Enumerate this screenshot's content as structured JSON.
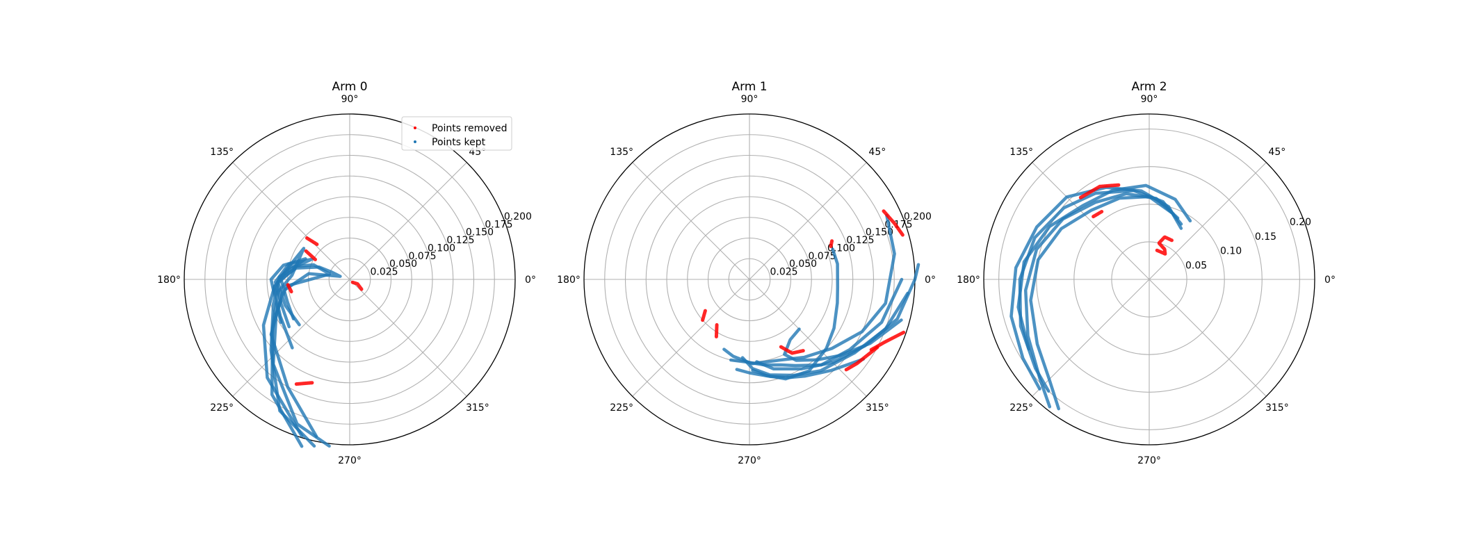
{
  "chart_data": [
    {
      "type": "scatter",
      "polar": true,
      "title": "Arm 0",
      "rlim": [
        0,
        0.2
      ],
      "rticks": [
        "0.025",
        "0.050",
        "0.075",
        "0.100",
        "0.125",
        "0.150",
        "0.175",
        "0.200"
      ],
      "rtick_values": [
        0.025,
        0.05,
        0.075,
        0.1,
        0.125,
        0.15,
        0.175,
        0.2
      ],
      "thetaticks": [
        "0°",
        "45°",
        "90°",
        "135°",
        "180°",
        "225°",
        "270°",
        "315°"
      ],
      "grid": true,
      "legend": {
        "placement": "top-right",
        "entries": [
          "Points removed",
          "Points kept"
        ]
      },
      "series": [
        {
          "name": "Points kept",
          "color": "#1f77b4",
          "traces": [
            [
              [
                215,
                0.083
              ],
              [
                200,
                0.08
              ],
              [
                180,
                0.083
              ],
              [
                168,
                0.066
              ],
              [
                158,
                0.04
              ],
              [
                158,
                0.023
              ],
              [
                162,
                0.012
              ],
              [
                172,
                0.05
              ],
              [
                190,
                0.082
              ],
              [
                215,
                0.116
              ],
              [
                240,
                0.15
              ],
              [
                258,
                0.194
              ]
            ],
            [
              [
                222,
                0.082
              ],
              [
                202,
                0.084
              ],
              [
                182,
                0.087
              ],
              [
                168,
                0.073
              ],
              [
                158,
                0.047
              ],
              [
                165,
                0.025
              ],
              [
                186,
                0.077
              ],
              [
                205,
                0.098
              ],
              [
                228,
                0.138
              ],
              [
                250,
                0.186
              ],
              [
                263,
                0.203
              ]
            ],
            [
              [
                218,
                0.093
              ],
              [
                200,
                0.088
              ],
              [
                182,
                0.09
              ],
              [
                166,
                0.076
              ],
              [
                152,
                0.052
              ],
              [
                166,
                0.066
              ],
              [
                185,
                0.091
              ],
              [
                208,
                0.118
              ],
              [
                230,
                0.155
              ],
              [
                253,
                0.198
              ]
            ],
            [
              [
                212,
                0.098
              ],
              [
                196,
                0.093
              ],
              [
                180,
                0.095
              ],
              [
                168,
                0.082
              ],
              [
                155,
                0.059
              ],
              [
                178,
                0.085
              ],
              [
                198,
                0.097
              ],
              [
                222,
                0.128
              ],
              [
                242,
                0.18
              ],
              [
                258,
                0.206
              ]
            ],
            [
              [
                230,
                0.108
              ],
              [
                208,
                0.095
              ],
              [
                186,
                0.092
              ],
              [
                172,
                0.078
              ],
              [
                146,
                0.067
              ],
              [
                176,
                0.07
              ],
              [
                190,
                0.088
              ],
              [
                212,
                0.11
              ],
              [
                236,
                0.168
              ],
              [
                254,
                0.21
              ]
            ]
          ]
        },
        {
          "name": "Points removed",
          "color": "#ff0000",
          "traces": [
            [
              [
                150,
                0.048
              ],
              [
                147,
                0.063
              ]
            ],
            [
              [
                133,
                0.058
              ],
              [
                136,
                0.072
              ]
            ],
            [
              [
                185,
                0.075
              ],
              [
                192,
                0.072
              ]
            ],
            [
              [
                243,
                0.142
              ],
              [
                250,
                0.133
              ]
            ],
            [
              [
                315,
                0.005
              ],
              [
                330,
                0.011
              ],
              [
                320,
                0.019
              ]
            ]
          ]
        }
      ]
    },
    {
      "type": "scatter",
      "polar": true,
      "title": "Arm 1",
      "rlim": [
        0,
        0.2
      ],
      "rticks": [
        "0.025",
        "0.050",
        "0.075",
        "0.100",
        "0.125",
        "0.150",
        "0.175",
        "0.200"
      ],
      "rtick_values": [
        0.025,
        0.05,
        0.075,
        0.1,
        0.125,
        0.15,
        0.175,
        0.2
      ],
      "thetaticks": [
        "0°",
        "45°",
        "90°",
        "135°",
        "180°",
        "225°",
        "270°",
        "315°"
      ],
      "grid": true,
      "series": [
        {
          "name": "Points kept",
          "color": "#1f77b4",
          "traces": [
            [
              [
                25,
                0.183
              ],
              [
                10,
                0.178
              ],
              [
                350,
                0.167
              ],
              [
                335,
                0.15
              ],
              [
                320,
                0.13
              ],
              [
                305,
                0.115
              ],
              [
                290,
                0.104
              ],
              [
                272,
                0.102
              ],
              [
                258,
                0.095
              ],
              [
                250,
                0.09
              ]
            ],
            [
              [
                5,
                0.205
              ],
              [
                0,
                0.2
              ],
              [
                345,
                0.185
              ],
              [
                330,
                0.161
              ],
              [
                315,
                0.142
              ],
              [
                300,
                0.125
              ],
              [
                285,
                0.112
              ],
              [
                275,
                0.1
              ]
            ],
            [
              [
                355,
                0.192
              ],
              [
                340,
                0.175
              ],
              [
                325,
                0.155
              ],
              [
                308,
                0.14
              ],
              [
                295,
                0.128
              ],
              [
                282,
                0.118
              ],
              [
                272,
                0.108
              ],
              [
                265,
                0.095
              ]
            ],
            [
              [
                0,
                0.184
              ],
              [
                342,
                0.168
              ],
              [
                325,
                0.148
              ],
              [
                310,
                0.135
              ],
              [
                298,
                0.118
              ],
              [
                290,
                0.11
              ],
              [
                280,
                0.105
              ],
              [
                268,
                0.1
              ],
              [
                257,
                0.1
              ]
            ],
            [
              [
                20,
                0.107
              ],
              [
                10,
                0.108
              ],
              [
                355,
                0.107
              ],
              [
                345,
                0.11
              ],
              [
                330,
                0.118
              ],
              [
                318,
                0.125
              ],
              [
                303,
                0.132
              ],
              [
                290,
                0.128
              ],
              [
                280,
                0.118
              ],
              [
                272,
                0.11
              ]
            ],
            [
              [
                345,
                0.19
              ],
              [
                332,
                0.165
              ],
              [
                320,
                0.143
              ],
              [
                310,
                0.127
              ],
              [
                300,
                0.113
              ],
              [
                295,
                0.1
              ],
              [
                304,
                0.088
              ],
              [
                315,
                0.085
              ]
            ],
            [
              [
                325,
                0.168
              ],
              [
                312,
                0.148
              ],
              [
                300,
                0.135
              ],
              [
                292,
                0.128
              ],
              [
                282,
                0.12
              ],
              [
                270,
                0.113
              ],
              [
                262,
                0.11
              ]
            ]
          ]
        },
        {
          "name": "Points removed",
          "color": "#ff0000",
          "traces": [
            [
              [
                27,
                0.182
              ],
              [
                21,
                0.188
              ],
              [
                16,
                0.193
              ]
            ],
            [
              [
                341,
                0.197
              ],
              [
                335,
                0.18
              ],
              [
                330,
                0.17
              ]
            ],
            [
              [
                332,
                0.175
              ],
              [
                322,
                0.165
              ],
              [
                317,
                0.16
              ]
            ],
            [
              [
                307,
                0.108
              ],
              [
                300,
                0.103
              ],
              [
                295,
                0.09
              ]
            ],
            [
              [
                221,
                0.075
              ],
              [
                215,
                0.065
              ]
            ],
            [
              [
                240,
                0.08
              ],
              [
                234,
                0.067
              ]
            ],
            [
              [
                25,
                0.11
              ],
              [
                22,
                0.106
              ]
            ]
          ]
        }
      ]
    },
    {
      "type": "scatter",
      "polar": true,
      "title": "Arm 2",
      "rlim": [
        0,
        0.22
      ],
      "rticks": [
        "0.05",
        "0.10",
        "0.15",
        "0.20"
      ],
      "rtick_values": [
        0.05,
        0.1,
        0.15,
        0.2
      ],
      "thetaticks": [
        "0°",
        "45°",
        "90°",
        "135°",
        "180°",
        "225°",
        "270°",
        "315°"
      ],
      "grid": true,
      "series": [
        {
          "name": "Points kept",
          "color": "#1f77b4",
          "traces": [
            [
              [
                70,
                0.093
              ],
              [
                90,
                0.11
              ],
              [
                110,
                0.115
              ],
              [
                130,
                0.12
              ],
              [
                150,
                0.135
              ],
              [
                170,
                0.15
              ],
              [
                190,
                0.16
              ],
              [
                210,
                0.172
              ],
              [
                225,
                0.188
              ],
              [
                235,
                0.21
              ]
            ],
            [
              [
                65,
                0.09
              ],
              [
                85,
                0.108
              ],
              [
                105,
                0.118
              ],
              [
                125,
                0.125
              ],
              [
                145,
                0.14
              ],
              [
                165,
                0.155
              ],
              [
                185,
                0.165
              ],
              [
                205,
                0.178
              ],
              [
                222,
                0.196
              ],
              [
                232,
                0.215
              ]
            ],
            [
              [
                60,
                0.085
              ],
              [
                80,
                0.105
              ],
              [
                100,
                0.12
              ],
              [
                122,
                0.135
              ],
              [
                140,
                0.148
              ],
              [
                160,
                0.162
              ],
              [
                180,
                0.172
              ],
              [
                200,
                0.182
              ],
              [
                218,
                0.192
              ],
              [
                228,
                0.2
              ]
            ],
            [
              [
                58,
                0.08
              ],
              [
                75,
                0.1
              ],
              [
                95,
                0.118
              ],
              [
                115,
                0.135
              ],
              [
                135,
                0.155
              ],
              [
                155,
                0.165
              ],
              [
                175,
                0.178
              ],
              [
                195,
                0.19
              ],
              [
                212,
                0.198
              ],
              [
                225,
                0.206
              ]
            ],
            [
              [
                55,
                0.095
              ],
              [
                72,
                0.112
              ],
              [
                92,
                0.125
              ],
              [
                112,
                0.128
              ],
              [
                132,
                0.132
              ],
              [
                152,
                0.15
              ],
              [
                172,
                0.168
              ],
              [
                192,
                0.178
              ],
              [
                210,
                0.185
              ]
            ]
          ]
        },
        {
          "name": "Points removed",
          "color": "#ff0000",
          "traces": [
            [
              [
                108,
                0.132
              ],
              [
                118,
                0.14
              ],
              [
                130,
                0.142
              ]
            ],
            [
              [
                125,
                0.11
              ],
              [
                132,
                0.112
              ]
            ],
            [
              [
                60,
                0.06
              ],
              [
                70,
                0.06
              ],
              [
                75,
                0.05
              ],
              [
                63,
                0.045
              ],
              [
                58,
                0.04
              ],
              [
                75,
                0.04
              ]
            ]
          ]
        }
      ]
    }
  ]
}
